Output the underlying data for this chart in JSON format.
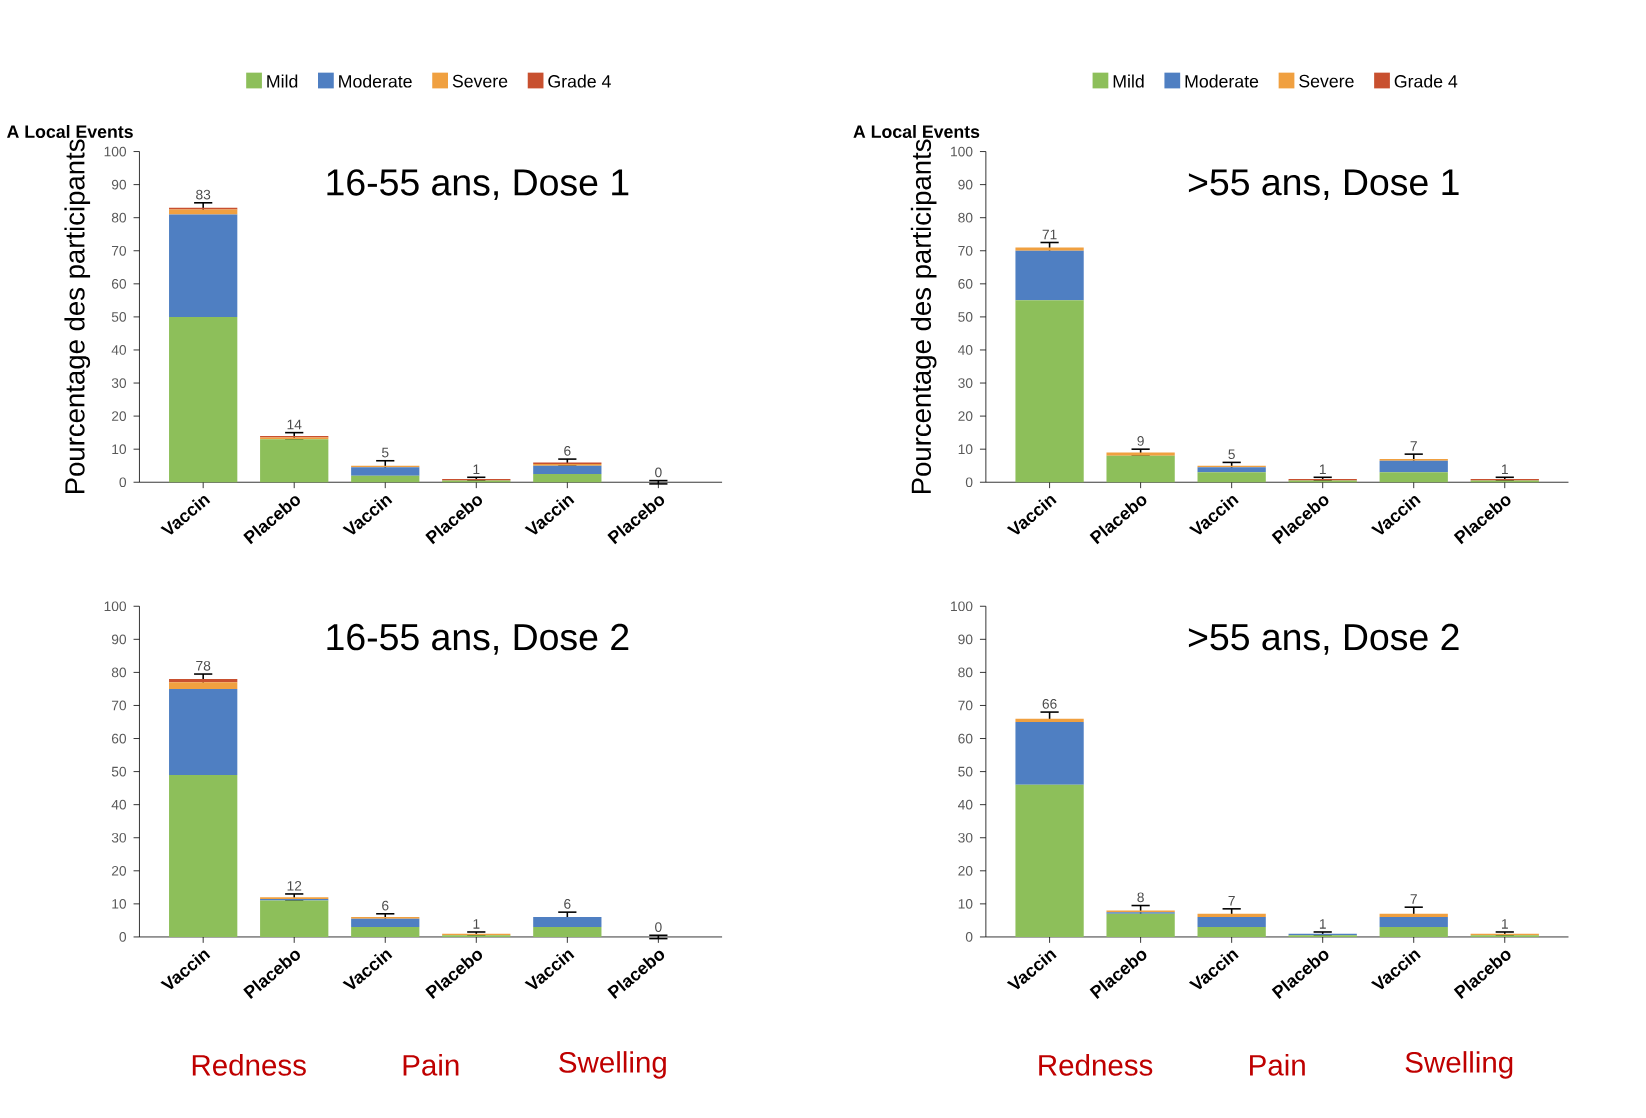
{
  "chart_data": [
    {
      "type": "bar",
      "stacked": true,
      "title": "16-55 ans, Dose 1",
      "subtitle": "A Local Events",
      "ylabel": "Pourcentage des participants",
      "legend": "top",
      "categories": [
        "Vaccin",
        "Placebo",
        "Vaccin",
        "Placebo",
        "Vaccin",
        "Placebo"
      ],
      "ylim": [
        0,
        100
      ],
      "yticks": [
        0,
        10,
        20,
        30,
        40,
        50,
        60,
        70,
        80,
        90,
        100
      ],
      "series": [
        {
          "name": "Mild",
          "color": "#8dbf5a",
          "values": [
            50,
            13,
            2,
            0.5,
            2.5,
            0
          ]
        },
        {
          "name": "Moderate",
          "color": "#4f7fc2",
          "values": [
            31,
            0,
            2.5,
            0,
            2.5,
            0
          ]
        },
        {
          "name": "Severe",
          "color": "#f0a040",
          "values": [
            1.5,
            0.5,
            0.5,
            0,
            0.5,
            0
          ]
        },
        {
          "name": "Grade 4",
          "color": "#c8502f",
          "values": [
            0.5,
            0.5,
            0,
            0.5,
            0.5,
            0
          ],
          "errors": [
            1.5,
            1,
            1.5,
            0.5,
            1,
            0.5
          ]
        }
      ],
      "totals": [
        "83",
        "14",
        "5",
        "1",
        "6",
        "0"
      ]
    },
    {
      "type": "bar",
      "stacked": true,
      "title": "16-55 ans, Dose 2",
      "annotations": [
        "Redness",
        "Pain",
        "Swelling"
      ],
      "categories": [
        "Vaccin",
        "Placebo",
        "Vaccin",
        "Placebo",
        "Vaccin",
        "Placebo"
      ],
      "ylim": [
        0,
        100
      ],
      "yticks": [
        0,
        10,
        20,
        30,
        40,
        50,
        60,
        70,
        80,
        90,
        100
      ],
      "series": [
        {
          "color": "#8dbf5a",
          "values": [
            49,
            11,
            3,
            0.5,
            3,
            0
          ]
        },
        {
          "color": "#4f7fc2",
          "values": [
            26,
            0.5,
            2.5,
            0,
            3,
            0
          ]
        },
        {
          "color": "#f0a040",
          "values": [
            2,
            0.5,
            0.5,
            0.5,
            0,
            0
          ]
        },
        {
          "color": "#c8502f",
          "values": [
            1,
            0,
            0,
            0,
            0,
            0
          ],
          "errors": [
            1.5,
            1,
            1,
            0.5,
            1.5,
            0.5
          ]
        }
      ],
      "totals": [
        "78",
        "12",
        "6",
        "1",
        "6",
        "0"
      ]
    },
    {
      "type": "bar",
      "stacked": true,
      "title": ">55 ans, Dose 1",
      "subtitle": "A Local Events",
      "ylabel": "Pourcentage des participants",
      "legend": "top",
      "categories": [
        "Vaccin",
        "Placebo",
        "Vaccin",
        "Placebo",
        "Vaccin",
        "Placebo"
      ],
      "ylim": [
        0,
        100
      ],
      "yticks": [
        0,
        10,
        20,
        30,
        40,
        50,
        60,
        70,
        80,
        90,
        100
      ],
      "series": [
        {
          "name": "Mild",
          "color": "#8dbf5a",
          "values": [
            55,
            8,
            3,
            0.5,
            3,
            0.5
          ]
        },
        {
          "name": "Moderate",
          "color": "#4f7fc2",
          "values": [
            15,
            0,
            1.5,
            0,
            3.5,
            0
          ]
        },
        {
          "name": "Severe",
          "color": "#f0a040",
          "values": [
            1,
            1,
            0.5,
            0,
            0.5,
            0
          ]
        },
        {
          "name": "Grade 4",
          "color": "#c8502f",
          "values": [
            0,
            0,
            0,
            0.5,
            0,
            0.5
          ],
          "errors": [
            1.5,
            1,
            1,
            0.5,
            1.5,
            0.5
          ]
        }
      ],
      "totals": [
        "71",
        "9",
        "5",
        "1",
        "7",
        "1"
      ]
    },
    {
      "type": "bar",
      "stacked": true,
      "title": ">55 ans, Dose 2",
      "annotations": [
        "Redness",
        "Pain",
        "Swelling"
      ],
      "categories": [
        "Vaccin",
        "Placebo",
        "Vaccin",
        "Placebo",
        "Vaccin",
        "Placebo"
      ],
      "ylim": [
        0,
        100
      ],
      "yticks": [
        0,
        10,
        20,
        30,
        40,
        50,
        60,
        70,
        80,
        90,
        100
      ],
      "series": [
        {
          "color": "#8dbf5a",
          "values": [
            46,
            7,
            3,
            0.5,
            3,
            0.5
          ]
        },
        {
          "color": "#4f7fc2",
          "values": [
            19,
            0.5,
            3,
            0.5,
            3,
            0
          ]
        },
        {
          "color": "#f0a040",
          "values": [
            1,
            0.5,
            1,
            0,
            1,
            0.5
          ]
        },
        {
          "color": "#c8502f",
          "values": [
            0,
            0,
            0,
            0,
            0,
            0
          ],
          "errors": [
            2,
            1.5,
            1.5,
            0.5,
            2,
            0.5
          ]
        }
      ],
      "totals": [
        "66",
        "8",
        "7",
        "1",
        "7",
        "1"
      ]
    }
  ]
}
